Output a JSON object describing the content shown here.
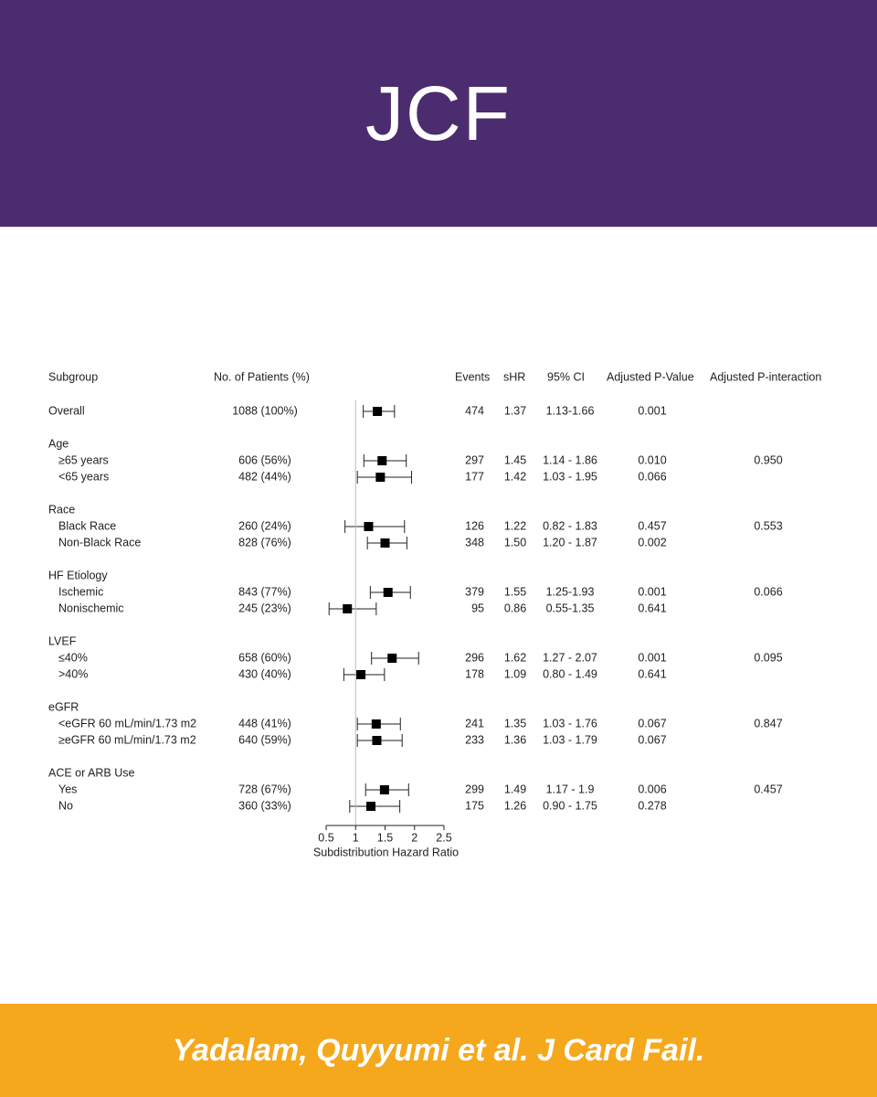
{
  "header": {
    "title": "JCF"
  },
  "footer": {
    "citation": "Yadalam, Quyyumi et al. J Card Fail."
  },
  "chart_data": {
    "type": "forest",
    "columns": {
      "subgroup": "Subgroup",
      "patients": "No. of Patients (%)",
      "events": "Events",
      "shr": "sHR",
      "ci": "95% CI",
      "p_value": "Adjusted P-Value",
      "p_interaction": "Adjusted P-interaction"
    },
    "x_label": "Subdistribution Hazard Ratio",
    "xlim": [
      0.5,
      2.5
    ],
    "xticks": [
      0.5,
      1,
      1.5,
      2,
      2.5
    ],
    "reference_line": 1,
    "marker_color": "#000000",
    "overall": {
      "label": "Overall",
      "patients": "1088 (100%)",
      "events": 474,
      "shr": 1.37,
      "ci_label": "1.13-1.66",
      "ci_low": 1.13,
      "ci_high": 1.66,
      "p_value": "0.001"
    },
    "groups": [
      {
        "name": "Age",
        "rows": [
          {
            "label": "≥65 years",
            "patients": "606 (56%)",
            "events": 297,
            "shr": 1.45,
            "ci_label": "1.14 - 1.86",
            "ci_low": 1.14,
            "ci_high": 1.86,
            "p_value": "0.010",
            "p_interaction": "0.950"
          },
          {
            "label": "<65 years",
            "patients": "482 (44%)",
            "events": 177,
            "shr": 1.42,
            "ci_label": "1.03 - 1.95",
            "ci_low": 1.03,
            "ci_high": 1.95,
            "p_value": "0.066"
          }
        ]
      },
      {
        "name": "Race",
        "rows": [
          {
            "label": "Black Race",
            "patients": "260 (24%)",
            "events": 126,
            "shr": 1.22,
            "ci_label": "0.82 - 1.83",
            "ci_low": 0.82,
            "ci_high": 1.83,
            "p_value": "0.457",
            "p_interaction": "0.553"
          },
          {
            "label": "Non-Black Race",
            "patients": "828 (76%)",
            "events": 348,
            "shr": 1.5,
            "shr_label": "1.50",
            "ci_label": "1.20 - 1.87",
            "ci_low": 1.2,
            "ci_high": 1.87,
            "p_value": "0.002"
          }
        ]
      },
      {
        "name": "HF Etiology",
        "rows": [
          {
            "label": "Ischemic",
            "patients": "843 (77%)",
            "events": 379,
            "shr": 1.55,
            "ci_label": "1.25-1.93",
            "ci_low": 1.25,
            "ci_high": 1.93,
            "p_value": "0.001",
            "p_interaction": "0.066"
          },
          {
            "label": "Nonischemic",
            "patients": "245 (23%)",
            "events": 95,
            "shr": 0.86,
            "ci_label": "0.55-1.35",
            "ci_low": 0.55,
            "ci_high": 1.35,
            "p_value": "0.641"
          }
        ]
      },
      {
        "name": "LVEF",
        "rows": [
          {
            "label": "≤40%",
            "patients": "658 (60%)",
            "events": 296,
            "shr": 1.62,
            "ci_label": "1.27 - 2.07",
            "ci_low": 1.27,
            "ci_high": 2.07,
            "p_value": "0.001",
            "p_interaction": "0.095"
          },
          {
            "label": ">40%",
            "patients": "430 (40%)",
            "events": 178,
            "shr": 1.09,
            "ci_label": "0.80 - 1.49",
            "ci_low": 0.8,
            "ci_high": 1.49,
            "p_value": "0.641"
          }
        ]
      },
      {
        "name": "eGFR",
        "rows": [
          {
            "label": "<eGFR 60 mL/min/1.73 m2",
            "patients": "448 (41%)",
            "events": 241,
            "shr": 1.35,
            "ci_label": "1.03 - 1.76",
            "ci_low": 1.03,
            "ci_high": 1.76,
            "p_value": "0.067",
            "p_interaction": "0.847"
          },
          {
            "label": "≥eGFR 60 mL/min/1.73 m2",
            "patients": "640 (59%)",
            "events": 233,
            "shr": 1.36,
            "ci_label": "1.03 - 1.79",
            "ci_low": 1.03,
            "ci_high": 1.79,
            "p_value": "0.067"
          }
        ]
      },
      {
        "name": "ACE or ARB Use",
        "rows": [
          {
            "label": "Yes",
            "patients": "728 (67%)",
            "events": 299,
            "shr": 1.49,
            "ci_label": "1.17 - 1.9",
            "ci_low": 1.17,
            "ci_high": 1.9,
            "p_value": "0.006",
            "p_interaction": "0.457"
          },
          {
            "label": "No",
            "patients": "360 (33%)",
            "events": 175,
            "shr": 1.26,
            "ci_label": "0.90 - 1.75",
            "ci_low": 0.9,
            "ci_high": 1.75,
            "p_value": "0.278"
          }
        ]
      }
    ]
  }
}
